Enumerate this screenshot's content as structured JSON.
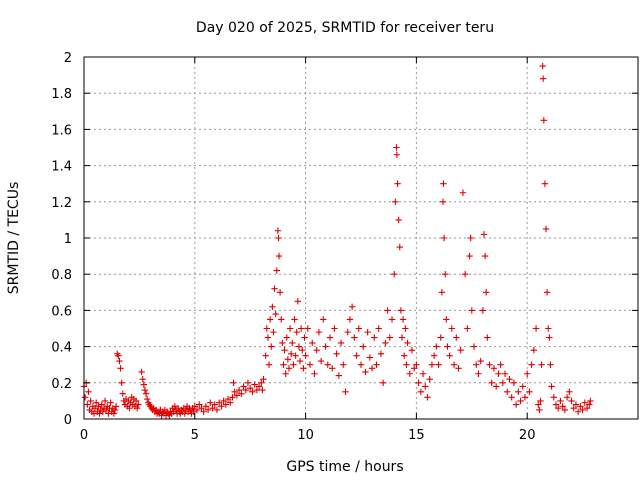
{
  "chart_data": {
    "type": "scatter",
    "title": "Day 020 of 2025, SRMTID for receiver teru",
    "xlabel": "GPS time / hours",
    "ylabel": "SRMTID / TECUs",
    "xlim": [
      0,
      25
    ],
    "ylim": [
      0,
      2
    ],
    "xticks": [
      0,
      5,
      10,
      15,
      20
    ],
    "yticks": [
      0,
      0.2,
      0.4,
      0.6,
      0.8,
      1,
      1.2,
      1.4,
      1.6,
      1.8,
      2
    ],
    "xtick_labels": [
      "0",
      "5",
      "10",
      "15",
      "20"
    ],
    "ytick_labels": [
      "0",
      "0.2",
      "0.4",
      "0.6",
      "0.8",
      "1",
      "1.2",
      "1.4",
      "1.6",
      "1.8",
      "2"
    ],
    "grid": true,
    "marker": "+",
    "color": "#e00000",
    "series": [
      {
        "name": "SRMTID",
        "points": [
          [
            0.0,
            0.18
          ],
          [
            0.05,
            0.12
          ],
          [
            0.1,
            0.2
          ],
          [
            0.15,
            0.08
          ],
          [
            0.2,
            0.15
          ],
          [
            0.25,
            0.05
          ],
          [
            0.3,
            0.1
          ],
          [
            0.35,
            0.04
          ],
          [
            0.4,
            0.07
          ],
          [
            0.45,
            0.03
          ],
          [
            0.5,
            0.06
          ],
          [
            0.55,
            0.09
          ],
          [
            0.6,
            0.04
          ],
          [
            0.65,
            0.07
          ],
          [
            0.7,
            0.03
          ],
          [
            0.75,
            0.05
          ],
          [
            0.8,
            0.08
          ],
          [
            0.85,
            0.04
          ],
          [
            0.9,
            0.06
          ],
          [
            0.95,
            0.1
          ],
          [
            1.0,
            0.05
          ],
          [
            1.05,
            0.07
          ],
          [
            1.1,
            0.03
          ],
          [
            1.15,
            0.06
          ],
          [
            1.2,
            0.09
          ],
          [
            1.25,
            0.04
          ],
          [
            1.3,
            0.06
          ],
          [
            1.35,
            0.03
          ],
          [
            1.4,
            0.05
          ],
          [
            1.45,
            0.07
          ],
          [
            1.5,
            0.36
          ],
          [
            1.55,
            0.35
          ],
          [
            1.6,
            0.32
          ],
          [
            1.65,
            0.28
          ],
          [
            1.7,
            0.2
          ],
          [
            1.75,
            0.14
          ],
          [
            1.8,
            0.1
          ],
          [
            1.85,
            0.08
          ],
          [
            1.9,
            0.11
          ],
          [
            1.95,
            0.07
          ],
          [
            2.0,
            0.1
          ],
          [
            2.05,
            0.06
          ],
          [
            2.1,
            0.09
          ],
          [
            2.15,
            0.12
          ],
          [
            2.2,
            0.08
          ],
          [
            2.25,
            0.11
          ],
          [
            2.3,
            0.07
          ],
          [
            2.35,
            0.1
          ],
          [
            2.4,
            0.06
          ],
          [
            2.45,
            0.08
          ],
          [
            2.6,
            0.26
          ],
          [
            2.65,
            0.22
          ],
          [
            2.7,
            0.19
          ],
          [
            2.75,
            0.16
          ],
          [
            2.8,
            0.14
          ],
          [
            2.85,
            0.11
          ],
          [
            2.9,
            0.09
          ],
          [
            2.95,
            0.08
          ],
          [
            3.0,
            0.07
          ],
          [
            3.05,
            0.06
          ],
          [
            3.1,
            0.05
          ],
          [
            3.15,
            0.06
          ],
          [
            3.2,
            0.04
          ],
          [
            3.25,
            0.05
          ],
          [
            3.3,
            0.03
          ],
          [
            3.35,
            0.04
          ],
          [
            3.4,
            0.03
          ],
          [
            3.45,
            0.05
          ],
          [
            3.5,
            0.02
          ],
          [
            3.55,
            0.04
          ],
          [
            3.6,
            0.03
          ],
          [
            3.65,
            0.05
          ],
          [
            3.7,
            0.02
          ],
          [
            3.75,
            0.04
          ],
          [
            3.8,
            0.03
          ],
          [
            3.85,
            0.02
          ],
          [
            3.9,
            0.04
          ],
          [
            3.95,
            0.03
          ],
          [
            4.0,
            0.06
          ],
          [
            4.05,
            0.04
          ],
          [
            4.1,
            0.07
          ],
          [
            4.15,
            0.05
          ],
          [
            4.2,
            0.03
          ],
          [
            4.25,
            0.06
          ],
          [
            4.3,
            0.04
          ],
          [
            4.35,
            0.03
          ],
          [
            4.4,
            0.05
          ],
          [
            4.45,
            0.04
          ],
          [
            4.5,
            0.06
          ],
          [
            4.55,
            0.03
          ],
          [
            4.6,
            0.05
          ],
          [
            4.65,
            0.07
          ],
          [
            4.7,
            0.04
          ],
          [
            4.75,
            0.06
          ],
          [
            4.8,
            0.05
          ],
          [
            4.85,
            0.03
          ],
          [
            4.9,
            0.06
          ],
          [
            4.95,
            0.04
          ],
          [
            5.0,
            0.07
          ],
          [
            5.1,
            0.05
          ],
          [
            5.2,
            0.08
          ],
          [
            5.3,
            0.06
          ],
          [
            5.4,
            0.04
          ],
          [
            5.5,
            0.07
          ],
          [
            5.6,
            0.05
          ],
          [
            5.7,
            0.09
          ],
          [
            5.8,
            0.06
          ],
          [
            5.9,
            0.08
          ],
          [
            6.0,
            0.05
          ],
          [
            6.1,
            0.09
          ],
          [
            6.2,
            0.07
          ],
          [
            6.3,
            0.1
          ],
          [
            6.4,
            0.08
          ],
          [
            6.5,
            0.11
          ],
          [
            6.6,
            0.09
          ],
          [
            6.7,
            0.12
          ],
          [
            6.75,
            0.2
          ],
          [
            6.8,
            0.15
          ],
          [
            6.9,
            0.13
          ],
          [
            7.0,
            0.16
          ],
          [
            7.1,
            0.14
          ],
          [
            7.2,
            0.18
          ],
          [
            7.3,
            0.16
          ],
          [
            7.4,
            0.2
          ],
          [
            7.5,
            0.17
          ],
          [
            7.6,
            0.15
          ],
          [
            7.7,
            0.19
          ],
          [
            7.8,
            0.16
          ],
          [
            7.9,
            0.18
          ],
          [
            8.0,
            0.2
          ],
          [
            8.05,
            0.16
          ],
          [
            8.1,
            0.22
          ],
          [
            8.2,
            0.35
          ],
          [
            8.25,
            0.5
          ],
          [
            8.3,
            0.45
          ],
          [
            8.35,
            0.3
          ],
          [
            8.4,
            0.55
          ],
          [
            8.45,
            0.4
          ],
          [
            8.5,
            0.62
          ],
          [
            8.55,
            0.48
          ],
          [
            8.6,
            0.72
          ],
          [
            8.65,
            0.58
          ],
          [
            8.7,
            0.82
          ],
          [
            8.75,
            1.04
          ],
          [
            8.78,
            1.0
          ],
          [
            8.8,
            0.9
          ],
          [
            8.85,
            0.7
          ],
          [
            8.9,
            0.55
          ],
          [
            8.95,
            0.42
          ],
          [
            9.0,
            0.3
          ],
          [
            9.05,
            0.38
          ],
          [
            9.1,
            0.25
          ],
          [
            9.15,
            0.45
          ],
          [
            9.2,
            0.33
          ],
          [
            9.25,
            0.28
          ],
          [
            9.3,
            0.5
          ],
          [
            9.35,
            0.36
          ],
          [
            9.4,
            0.42
          ],
          [
            9.45,
            0.3
          ],
          [
            9.5,
            0.55
          ],
          [
            9.55,
            0.35
          ],
          [
            9.6,
            0.48
          ],
          [
            9.65,
            0.65
          ],
          [
            9.7,
            0.4
          ],
          [
            9.75,
            0.32
          ],
          [
            9.8,
            0.5
          ],
          [
            9.85,
            0.38
          ],
          [
            9.9,
            0.28
          ],
          [
            9.95,
            0.45
          ],
          [
            10.0,
            0.35
          ],
          [
            10.1,
            0.5
          ],
          [
            10.2,
            0.3
          ],
          [
            10.3,
            0.42
          ],
          [
            10.4,
            0.25
          ],
          [
            10.5,
            0.38
          ],
          [
            10.6,
            0.48
          ],
          [
            10.7,
            0.32
          ],
          [
            10.8,
            0.55
          ],
          [
            10.9,
            0.4
          ],
          [
            11.0,
            0.3
          ],
          [
            11.1,
            0.45
          ],
          [
            11.2,
            0.28
          ],
          [
            11.3,
            0.5
          ],
          [
            11.4,
            0.36
          ],
          [
            11.5,
            0.24
          ],
          [
            11.6,
            0.42
          ],
          [
            11.7,
            0.3
          ],
          [
            11.8,
            0.15
          ],
          [
            11.9,
            0.48
          ],
          [
            12.0,
            0.55
          ],
          [
            12.1,
            0.62
          ],
          [
            12.2,
            0.45
          ],
          [
            12.3,
            0.35
          ],
          [
            12.4,
            0.5
          ],
          [
            12.5,
            0.3
          ],
          [
            12.6,
            0.4
          ],
          [
            12.7,
            0.26
          ],
          [
            12.8,
            0.48
          ],
          [
            12.9,
            0.34
          ],
          [
            13.0,
            0.28
          ],
          [
            13.1,
            0.45
          ],
          [
            13.2,
            0.3
          ],
          [
            13.3,
            0.5
          ],
          [
            13.4,
            0.36
          ],
          [
            13.5,
            0.2
          ],
          [
            13.6,
            0.42
          ],
          [
            13.7,
            0.6
          ],
          [
            13.8,
            0.45
          ],
          [
            13.9,
            0.55
          ],
          [
            14.0,
            0.8
          ],
          [
            14.05,
            1.2
          ],
          [
            14.1,
            1.5
          ],
          [
            14.12,
            1.46
          ],
          [
            14.15,
            1.3
          ],
          [
            14.2,
            1.1
          ],
          [
            14.25,
            0.95
          ],
          [
            14.3,
            0.6
          ],
          [
            14.35,
            0.45
          ],
          [
            14.4,
            0.55
          ],
          [
            14.45,
            0.35
          ],
          [
            14.5,
            0.5
          ],
          [
            14.55,
            0.3
          ],
          [
            14.6,
            0.42
          ],
          [
            14.7,
            0.25
          ],
          [
            14.8,
            0.38
          ],
          [
            14.9,
            0.28
          ],
          [
            15.0,
            0.3
          ],
          [
            15.1,
            0.2
          ],
          [
            15.2,
            0.15
          ],
          [
            15.3,
            0.25
          ],
          [
            15.4,
            0.18
          ],
          [
            15.5,
            0.12
          ],
          [
            15.6,
            0.22
          ],
          [
            15.7,
            0.3
          ],
          [
            15.8,
            0.35
          ],
          [
            15.9,
            0.4
          ],
          [
            16.0,
            0.3
          ],
          [
            16.1,
            0.45
          ],
          [
            16.15,
            0.7
          ],
          [
            16.2,
            1.2
          ],
          [
            16.22,
            1.3
          ],
          [
            16.25,
            1.0
          ],
          [
            16.3,
            0.8
          ],
          [
            16.35,
            0.55
          ],
          [
            16.4,
            0.4
          ],
          [
            16.5,
            0.35
          ],
          [
            16.6,
            0.5
          ],
          [
            16.7,
            0.3
          ],
          [
            16.8,
            0.45
          ],
          [
            16.9,
            0.28
          ],
          [
            17.0,
            0.38
          ],
          [
            17.1,
            1.25
          ],
          [
            17.2,
            0.8
          ],
          [
            17.3,
            0.5
          ],
          [
            17.4,
            0.9
          ],
          [
            17.45,
            1.0
          ],
          [
            17.5,
            0.6
          ],
          [
            17.6,
            0.4
          ],
          [
            17.7,
            0.3
          ],
          [
            17.8,
            0.25
          ],
          [
            17.9,
            0.32
          ],
          [
            18.0,
            0.6
          ],
          [
            18.05,
            1.02
          ],
          [
            18.1,
            0.9
          ],
          [
            18.15,
            0.7
          ],
          [
            18.2,
            0.45
          ],
          [
            18.3,
            0.3
          ],
          [
            18.4,
            0.2
          ],
          [
            18.5,
            0.28
          ],
          [
            18.6,
            0.18
          ],
          [
            18.7,
            0.25
          ],
          [
            18.8,
            0.3
          ],
          [
            18.9,
            0.2
          ],
          [
            19.0,
            0.25
          ],
          [
            19.1,
            0.15
          ],
          [
            19.2,
            0.22
          ],
          [
            19.3,
            0.12
          ],
          [
            19.4,
            0.2
          ],
          [
            19.5,
            0.08
          ],
          [
            19.6,
            0.15
          ],
          [
            19.7,
            0.1
          ],
          [
            19.8,
            0.18
          ],
          [
            19.9,
            0.12
          ],
          [
            20.0,
            0.25
          ],
          [
            20.1,
            0.15
          ],
          [
            20.2,
            0.3
          ],
          [
            20.3,
            0.38
          ],
          [
            20.4,
            0.5
          ],
          [
            20.5,
            0.08
          ],
          [
            20.55,
            0.05
          ],
          [
            20.6,
            0.1
          ],
          [
            20.65,
            0.3
          ],
          [
            20.7,
            1.95
          ],
          [
            20.72,
            1.88
          ],
          [
            20.75,
            1.65
          ],
          [
            20.8,
            1.3
          ],
          [
            20.85,
            1.05
          ],
          [
            20.9,
            0.7
          ],
          [
            20.95,
            0.5
          ],
          [
            21.0,
            0.45
          ],
          [
            21.05,
            0.3
          ],
          [
            21.1,
            0.18
          ],
          [
            21.2,
            0.12
          ],
          [
            21.3,
            0.08
          ],
          [
            21.4,
            0.06
          ],
          [
            21.5,
            0.1
          ],
          [
            21.6,
            0.07
          ],
          [
            21.7,
            0.05
          ],
          [
            21.8,
            0.12
          ],
          [
            21.9,
            0.15
          ],
          [
            22.0,
            0.1
          ],
          [
            22.1,
            0.06
          ],
          [
            22.2,
            0.08
          ],
          [
            22.3,
            0.04
          ],
          [
            22.4,
            0.07
          ],
          [
            22.5,
            0.05
          ],
          [
            22.6,
            0.09
          ],
          [
            22.7,
            0.06
          ],
          [
            22.8,
            0.08
          ],
          [
            22.85,
            0.1
          ]
        ]
      }
    ]
  }
}
